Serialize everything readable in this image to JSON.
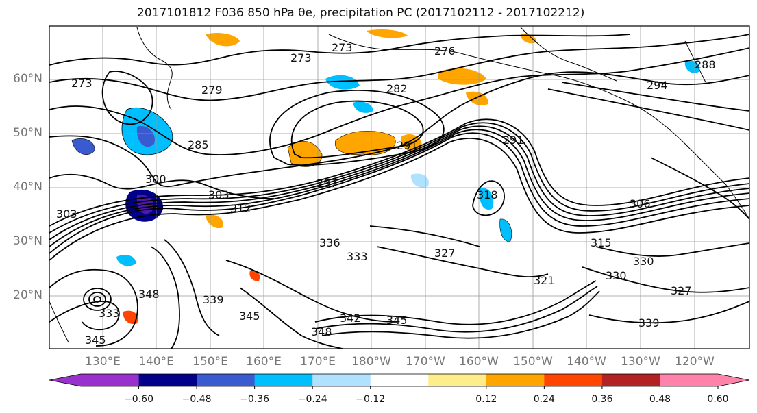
{
  "title": "2017101812 F036 850 hPa θe, precipitation PC (2017102112 - 2017102212)",
  "lat_labels": [
    "60°N",
    "50°N",
    "40°N",
    "30°N",
    "20°N"
  ],
  "lon_labels": [
    "130°E",
    "140°E",
    "150°E",
    "160°E",
    "170°E",
    "180°W",
    "170°W",
    "160°W",
    "150°W",
    "140°W",
    "130°W",
    "120°W"
  ],
  "colorbar": {
    "colors": [
      "#9932cc",
      "#00008b",
      "#3a5bd0",
      "#00bfff",
      "#b0e2ff",
      "#ffffff",
      "#ffec8b",
      "#ffa500",
      "#ff4500",
      "#b22222",
      "#ff82ab"
    ],
    "tick_labels": [
      "−0.60",
      "−0.48",
      "−0.36",
      "−0.24",
      "−0.12",
      "0.12",
      "0.24",
      "0.36",
      "0.48",
      "0.60"
    ]
  },
  "contour_labels": [
    "273",
    "276",
    "273",
    "273",
    "279",
    "282",
    "285",
    "288",
    "294",
    "291",
    "291",
    "297",
    "300",
    "303",
    "312",
    "318",
    "306",
    "315",
    "336",
    "333",
    "327",
    "330",
    "330",
    "327",
    "321",
    "339",
    "342",
    "345",
    "348",
    "345",
    "339",
    "348",
    "333",
    "345",
    "303"
  ]
}
